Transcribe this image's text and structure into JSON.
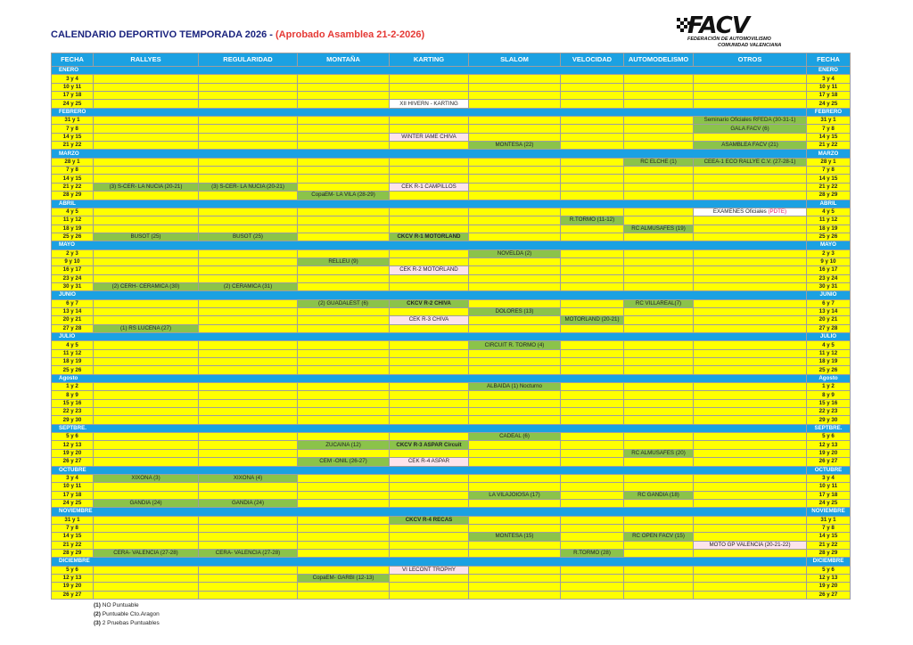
{
  "title": "CALENDARIO DEPORTIVO TEMPORADA 2026 - ",
  "title_red": "(Aprobado Asamblea 21-2-2026)",
  "logo": {
    "word": "FACV",
    "line1": "FEDERACIÓN DE AUTOMOVILISMO",
    "line2": "COMUNIDAD VALENCIANA"
  },
  "headers": [
    "FECHA",
    "RALLYES",
    "REGULARIDAD",
    "MONTAÑA",
    "KARTING",
    "SLALOM",
    "VELOCIDAD",
    "AUTOMODELISMO",
    "OTROS",
    "FECHA"
  ],
  "months": [
    {
      "name": "ENERO",
      "rows": [
        {
          "d": "3 y 4"
        },
        {
          "d": "10 y 11"
        },
        {
          "d": "17 y 18"
        },
        {
          "d": "24 y 25",
          "cells": {
            "karting": {
              "t": "XII  HIVERN - KARTING",
              "c": "w"
            }
          }
        }
      ]
    },
    {
      "name": "FEBRERO",
      "rows": [
        {
          "d": "31 y 1",
          "cells": {
            "otros": {
              "t": "Seminario Oficiales RFEDA (30-31-1)",
              "c": "g"
            }
          }
        },
        {
          "d": "7 y 8",
          "cells": {
            "otros": {
              "t": "GALA FACV (6)",
              "c": "g"
            }
          }
        },
        {
          "d": "14 y 15",
          "cells": {
            "karting": {
              "t": "WINTER IAME CHIVA",
              "c": "p"
            }
          }
        },
        {
          "d": "21 y 22",
          "cells": {
            "slalom": {
              "t": "MONTESA (22)",
              "c": "g"
            },
            "otros": {
              "t": "ASAMBLEA FACV (21)",
              "c": "g"
            }
          }
        }
      ]
    },
    {
      "name": "MARZO",
      "rows": [
        {
          "d": "28 y 1",
          "cells": {
            "automodelismo": {
              "t": "RC ELCHE (1)",
              "c": "g"
            },
            "otros": {
              "t": "CEEA-1 ECO RALLYE C.V. (27-28-1)",
              "c": "g"
            }
          }
        },
        {
          "d": "7 y 8"
        },
        {
          "d": "14 y 15"
        },
        {
          "d": "21 y 22",
          "cells": {
            "rallyes": {
              "t": "(3) S-CER-  LA NUCIA (20-21)",
              "c": "g"
            },
            "regularidad": {
              "t": "(3) S-CER-  LA NUCIA (20-21)",
              "c": "g"
            },
            "karting": {
              "t": "CEK R-1 CAMPILLOS",
              "c": "p"
            }
          }
        },
        {
          "d": "28 y 29",
          "cells": {
            "montana": {
              "t": "CopaEM- LA VILA (28-29)",
              "c": "g"
            }
          }
        }
      ]
    },
    {
      "name": "ABRIL",
      "rows": [
        {
          "d": "4 y 5",
          "cells": {
            "otros": {
              "t": "EXAMENES Oficiales",
              "t2": "(PDTE)",
              "c": "w"
            }
          }
        },
        {
          "d": "11 y 12",
          "cells": {
            "velocidad": {
              "t": "R.TORMO (11-12)",
              "c": "g"
            }
          }
        },
        {
          "d": "18 y 19",
          "cells": {
            "automodelismo": {
              "t": "RC ALMUSAFES (19)",
              "c": "g"
            }
          }
        },
        {
          "d": "25 y 26",
          "cells": {
            "rallyes": {
              "t": "BUSOT (25)",
              "c": "g"
            },
            "regularidad": {
              "t": "BUSOT (25)",
              "c": "g"
            },
            "karting": {
              "t": "CKCV R-1 MOTORLAND",
              "c": "g",
              "b": true
            }
          }
        }
      ]
    },
    {
      "name": "MAYO",
      "rows": [
        {
          "d": "2 y 3",
          "cells": {
            "slalom": {
              "t": "NOVELDA (2)",
              "c": "g"
            }
          }
        },
        {
          "d": "9 y 10",
          "cells": {
            "montana": {
              "t": "RELLEU  (9)",
              "c": "g"
            }
          }
        },
        {
          "d": "16 y 17",
          "cells": {
            "karting": {
              "t": "CEK R-2 MOTORLAND",
              "c": "p"
            }
          }
        },
        {
          "d": "23 y 24"
        },
        {
          "d": "30 y 31",
          "cells": {
            "rallyes": {
              "t": "(2) CERH- CERAMICA (30)",
              "c": "g"
            },
            "regularidad": {
              "t": "(2) CERAMICA (31)",
              "c": "g"
            }
          }
        }
      ]
    },
    {
      "name": "JUNIO",
      "rows": [
        {
          "d": "6 y 7",
          "cells": {
            "montana": {
              "t": "(2) GUADALEST (6)",
              "c": "g"
            },
            "karting": {
              "t": "CKCV  R-2  CHIVA",
              "c": "g",
              "b": true
            },
            "automodelismo": {
              "t": "RC  VILLAREAL(7)",
              "c": "g"
            }
          }
        },
        {
          "d": "13 y 14",
          "cells": {
            "slalom": {
              "t": "DOLORES (13)",
              "c": "g"
            }
          }
        },
        {
          "d": "20 y 21",
          "cells": {
            "karting": {
              "t": "CEK R-3 CHIVA",
              "c": "p"
            },
            "velocidad": {
              "t": "MOTORLAND (20-21)",
              "c": "g"
            }
          }
        },
        {
          "d": "27 y 28",
          "cells": {
            "rallyes": {
              "t": "(1)  RS LUCENA  (27)",
              "c": "g"
            }
          }
        }
      ]
    },
    {
      "name": "JULIO",
      "rows": [
        {
          "d": "4 y 5",
          "cells": {
            "slalom": {
              "t": "CIRCUIT R. TORMO (4)",
              "c": "g"
            }
          }
        },
        {
          "d": "11 y 12"
        },
        {
          "d": "18 y 19"
        },
        {
          "d": "25 y 26"
        }
      ]
    },
    {
      "name": "Agosto",
      "rows": [
        {
          "d": "1 y 2",
          "cells": {
            "slalom": {
              "t": "ALBAIDA (1) Nocturno",
              "c": "g"
            }
          }
        },
        {
          "d": "8 y 9"
        },
        {
          "d": "15 y 16"
        },
        {
          "d": "22 y 23"
        },
        {
          "d": "29 y 30"
        }
      ]
    },
    {
      "name": "SEPTBRE.",
      "rows": [
        {
          "d": "5 y 6",
          "cells": {
            "slalom": {
              "t": "CADEAL (6)",
              "c": "g"
            }
          }
        },
        {
          "d": "12 y 13",
          "cells": {
            "montana": {
              "t": "ZUCAINA  (12)",
              "c": "g"
            },
            "karting": {
              "t": "CKCV R-3 ASPAR Circuit",
              "c": "g",
              "b": true
            }
          }
        },
        {
          "d": "19 y 20",
          "cells": {
            "automodelismo": {
              "t": "RC ALMUSAFES (20)",
              "c": "g"
            }
          }
        },
        {
          "d": "26 y 27",
          "cells": {
            "montana": {
              "t": "CEM -ONIL (26-27)",
              "c": "g"
            },
            "karting": {
              "t": "CEK R-4 ASPAR",
              "c": "p"
            }
          }
        }
      ]
    },
    {
      "name": "OCTUBRE",
      "rows": [
        {
          "d": "3 y 4",
          "cells": {
            "rallyes": {
              "t": "XIXONA (3)",
              "c": "g"
            },
            "regularidad": {
              "t": "XIXONA (4)",
              "c": "g"
            }
          }
        },
        {
          "d": "10 y 11"
        },
        {
          "d": "17 y 18",
          "cells": {
            "slalom": {
              "t": "LA VILAJOIOSA (17)",
              "c": "g"
            },
            "automodelismo": {
              "t": "RC  GANDIA (18)",
              "c": "g"
            }
          }
        },
        {
          "d": "24 y 25",
          "cells": {
            "rallyes": {
              "t": "GANDIA (24)",
              "c": "g"
            },
            "regularidad": {
              "t": "GANDIA (24)",
              "c": "g"
            }
          }
        }
      ]
    },
    {
      "name": "NOVIEMBRE",
      "rows": [
        {
          "d": "31 y 1",
          "cells": {
            "karting": {
              "t": "CKCV R-4 RECAS",
              "c": "g",
              "b": true
            }
          }
        },
        {
          "d": "7 y 8"
        },
        {
          "d": "14 y 15",
          "cells": {
            "slalom": {
              "t": "MONTESA (15)",
              "c": "g"
            },
            "automodelismo": {
              "t": "RC OPEN FACV (15)",
              "c": "g"
            }
          }
        },
        {
          "d": "21 y 22",
          "cells": {
            "otros": {
              "t": "MOTO GP VALENCIA (20-21-22)",
              "c": "p"
            }
          }
        },
        {
          "d": "28 y 29",
          "cells": {
            "rallyes": {
              "t": "CERA-  VALENCIA (27-28)",
              "c": "g"
            },
            "regularidad": {
              "t": "CERA-  VALENCIA (27-28)",
              "c": "g"
            },
            "velocidad": {
              "t": "R.TORMO (28)",
              "c": "g"
            }
          }
        }
      ]
    },
    {
      "name": "DICIEMBRE",
      "rows": [
        {
          "d": "5 y 6",
          "cells": {
            "karting": {
              "t": "VI LECONT TROPHY",
              "c": "p"
            }
          }
        },
        {
          "d": "12 y 13",
          "cells": {
            "montana": {
              "t": "CopaEM- GARBI (12-13)",
              "c": "g"
            }
          }
        },
        {
          "d": "19 y 20"
        },
        {
          "d": "26 y 27"
        }
      ]
    }
  ],
  "notes": [
    {
      "k": "(1)",
      "t": "NO Puntuable"
    },
    {
      "k": "(2)",
      "t": "Puntuable Cto.Aragon"
    },
    {
      "k": "(3)",
      "t": "2 Pruebas Puntuables"
    }
  ]
}
